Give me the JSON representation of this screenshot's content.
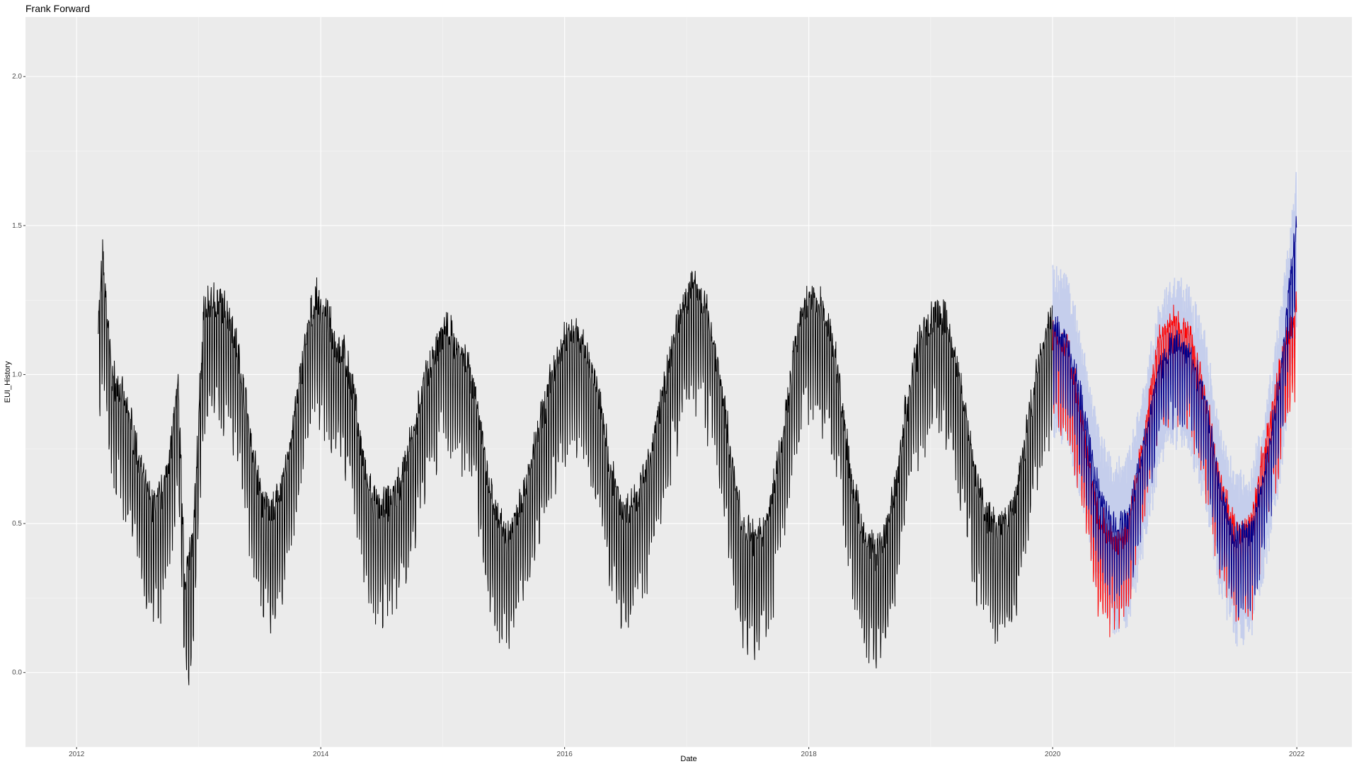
{
  "chart_data": {
    "type": "line",
    "title": "Frank Forward",
    "xlabel": "Date",
    "ylabel": "EUI_History",
    "x_range": [
      "2011-08-01",
      "2022-06-15"
    ],
    "ylim": [
      -0.25,
      2.2
    ],
    "x_ticks": [
      "2012",
      "2014",
      "2016",
      "2018",
      "2020",
      "2022"
    ],
    "y_ticks": [
      "0.0",
      "0.5",
      "1.0",
      "1.5",
      "2.0"
    ],
    "grid": true,
    "legend": "none",
    "series": [
      {
        "role": "history",
        "color": "#000000",
        "x": [
          "2012-03-05",
          "2012-03-20",
          "2012-04-15",
          "2012-05-15",
          "2012-06-15",
          "2012-07-15",
          "2012-08-15",
          "2012-09-15",
          "2012-10-15",
          "2012-11-01",
          "2012-11-20",
          "2012-12-15",
          "2013-01-15",
          "2013-02-15",
          "2013-03-15",
          "2013-04-15",
          "2013-05-15",
          "2013-06-15",
          "2013-07-15",
          "2013-08-15",
          "2013-09-15",
          "2013-10-15",
          "2013-11-15",
          "2013-12-15",
          "2014-01-15",
          "2014-02-15",
          "2014-03-15",
          "2014-04-15",
          "2014-05-15",
          "2014-06-15",
          "2014-07-15",
          "2014-08-15",
          "2014-09-15",
          "2014-10-15",
          "2014-11-15",
          "2014-12-15",
          "2015-01-15",
          "2015-02-15",
          "2015-03-15",
          "2015-04-15",
          "2015-05-15",
          "2015-06-15",
          "2015-07-15",
          "2015-08-15",
          "2015-09-15",
          "2015-10-15",
          "2015-11-15",
          "2015-12-15",
          "2016-01-15",
          "2016-02-15",
          "2016-03-15",
          "2016-04-15",
          "2016-05-15",
          "2016-06-15",
          "2016-07-15",
          "2016-08-15",
          "2016-09-15",
          "2016-10-15",
          "2016-11-15",
          "2016-12-15",
          "2017-01-15",
          "2017-02-15",
          "2017-03-15",
          "2017-04-15",
          "2017-05-15",
          "2017-06-15",
          "2017-07-15",
          "2017-08-15",
          "2017-09-15",
          "2017-10-15",
          "2017-11-15",
          "2017-12-15",
          "2018-01-15",
          "2018-02-15",
          "2018-03-15",
          "2018-04-15",
          "2018-05-15",
          "2018-06-15",
          "2018-07-15",
          "2018-08-15",
          "2018-09-15",
          "2018-10-15",
          "2018-11-15",
          "2018-12-15",
          "2019-01-15",
          "2019-02-15",
          "2019-03-15",
          "2019-04-15",
          "2019-05-15",
          "2019-06-15",
          "2019-07-15",
          "2019-08-15",
          "2019-09-15",
          "2019-10-15",
          "2019-11-15",
          "2019-12-15",
          "2019-12-31"
        ],
        "y": [
          1.05,
          1.3,
          0.9,
          0.82,
          0.72,
          0.55,
          0.45,
          0.5,
          0.7,
          0.85,
          0.2,
          0.35,
          1.1,
          1.15,
          1.12,
          1.05,
          0.85,
          0.6,
          0.45,
          0.45,
          0.55,
          0.75,
          1.0,
          1.15,
          1.1,
          1.0,
          0.95,
          0.8,
          0.55,
          0.45,
          0.45,
          0.5,
          0.6,
          0.75,
          0.9,
          1.0,
          1.05,
          0.98,
          0.95,
          0.8,
          0.55,
          0.4,
          0.35,
          0.45,
          0.55,
          0.7,
          0.85,
          0.95,
          1.05,
          1.02,
          0.95,
          0.8,
          0.6,
          0.45,
          0.45,
          0.5,
          0.62,
          0.8,
          0.95,
          1.1,
          1.2,
          1.15,
          1.05,
          0.85,
          0.6,
          0.4,
          0.35,
          0.35,
          0.5,
          0.7,
          0.95,
          1.1,
          1.15,
          1.1,
          1.0,
          0.75,
          0.5,
          0.35,
          0.3,
          0.35,
          0.5,
          0.75,
          0.95,
          1.05,
          1.1,
          1.08,
          0.95,
          0.75,
          0.55,
          0.42,
          0.38,
          0.4,
          0.5,
          0.7,
          0.9,
          1.05,
          1.08
        ],
        "amplitude": 0.28
      },
      {
        "role": "forecast-interval",
        "color": "#b8c4ec",
        "x": [
          "2020-01-01",
          "2020-02-15",
          "2020-04-01",
          "2020-05-15",
          "2020-07-01",
          "2020-08-15",
          "2020-10-01",
          "2020-11-15",
          "2021-01-01",
          "2021-02-15",
          "2021-04-01",
          "2021-05-15",
          "2021-07-01",
          "2021-08-15",
          "2021-10-01",
          "2021-11-15",
          "2021-12-31"
        ],
        "y": [
          1.08,
          1.05,
          0.82,
          0.55,
          0.42,
          0.45,
          0.7,
          0.95,
          1.05,
          1.0,
          0.85,
          0.55,
          0.38,
          0.4,
          0.62,
          0.95,
          1.4
        ],
        "amplitude": 0.3
      },
      {
        "role": "actual",
        "color": "#ff0000",
        "x": [
          "2020-01-01",
          "2020-02-15",
          "2020-04-01",
          "2020-05-15",
          "2020-07-01",
          "2020-08-15",
          "2020-10-01",
          "2020-11-15",
          "2021-01-01",
          "2021-02-15",
          "2021-04-01",
          "2021-05-15",
          "2021-07-01",
          "2021-08-15",
          "2021-10-01",
          "2021-11-15",
          "2021-12-31"
        ],
        "y": [
          1.05,
          1.0,
          0.75,
          0.45,
          0.35,
          0.4,
          0.72,
          1.05,
          1.1,
          1.05,
          0.85,
          0.55,
          0.38,
          0.4,
          0.7,
          0.95,
          1.15
        ],
        "amplitude": 0.22
      },
      {
        "role": "forecast",
        "color": "#00008b",
        "x": [
          "2020-01-01",
          "2020-02-15",
          "2020-04-01",
          "2020-05-15",
          "2020-07-01",
          "2020-08-15",
          "2020-10-01",
          "2020-11-15",
          "2021-01-01",
          "2021-02-15",
          "2021-04-01",
          "2021-05-15",
          "2021-07-01",
          "2021-08-15",
          "2021-10-01",
          "2021-11-15",
          "2021-12-31"
        ],
        "y": [
          1.1,
          1.05,
          0.82,
          0.55,
          0.42,
          0.45,
          0.7,
          0.95,
          1.05,
          1.0,
          0.85,
          0.55,
          0.38,
          0.4,
          0.62,
          0.95,
          1.45
        ],
        "amplitude": 0.18
      }
    ]
  }
}
